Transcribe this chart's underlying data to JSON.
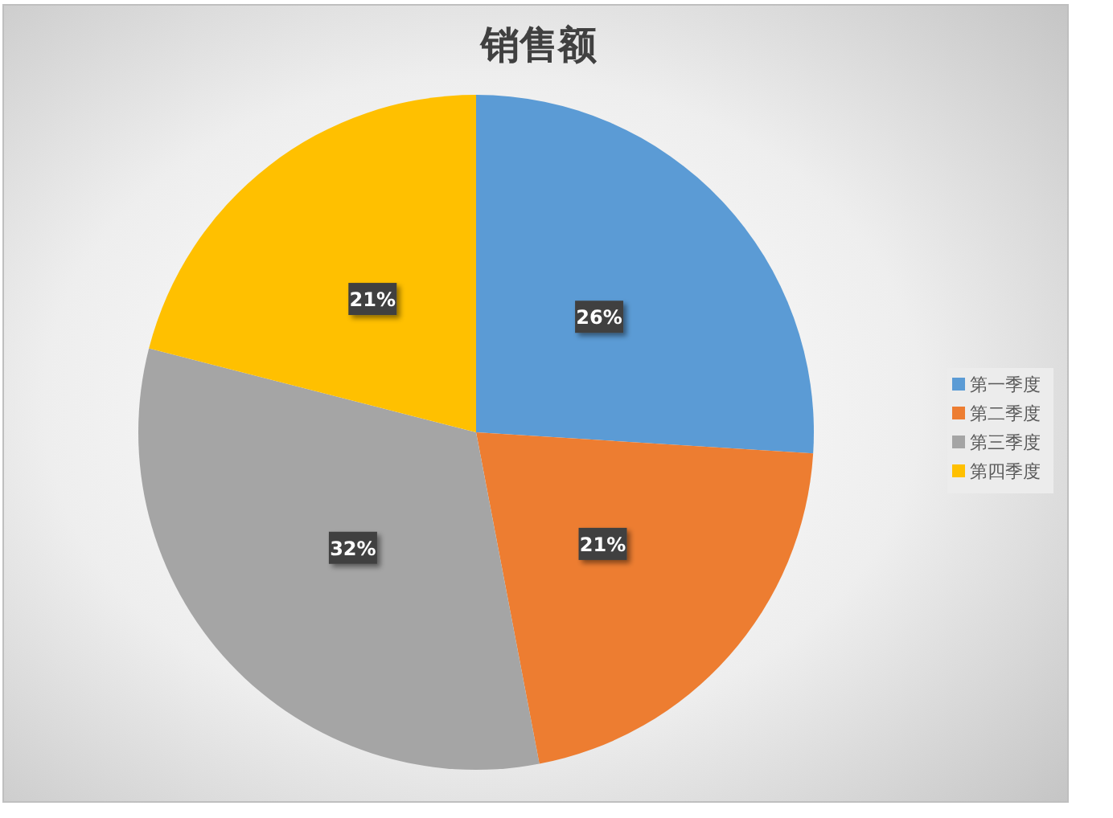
{
  "chart_data": {
    "type": "pie",
    "title": "销售额",
    "categories": [
      "第一季度",
      "第二季度",
      "第三季度",
      "第四季度"
    ],
    "values": [
      26,
      21,
      32,
      21
    ],
    "colors": [
      "#5b9bd5",
      "#ed7d31",
      "#a5a5a5",
      "#ffc000"
    ],
    "value_labels": [
      "26%",
      "21%",
      "32%",
      "21%"
    ],
    "legend": "right"
  }
}
